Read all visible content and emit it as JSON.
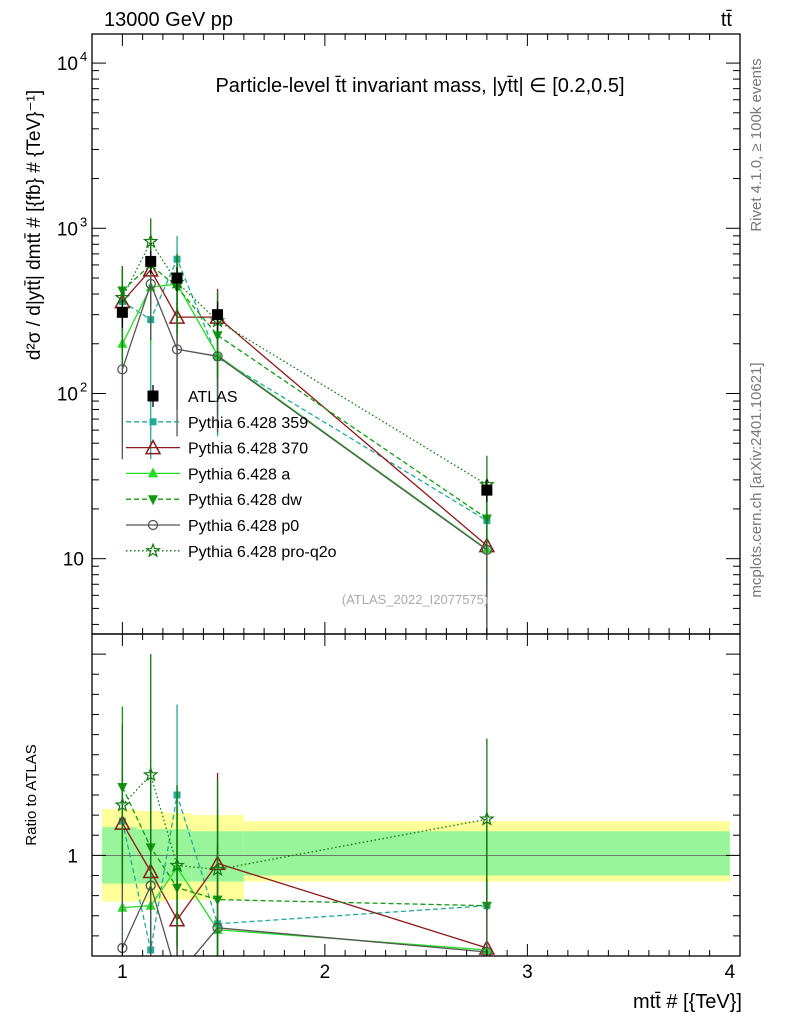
{
  "header": {
    "left_label": "13000 GeV pp",
    "right_label": "tt̄"
  },
  "side_labels": {
    "rivet": "Rivet 4.1.0, ≥ 100k events",
    "mcplots": "mcplots.cern.ch [arXiv:2401.10621]"
  },
  "chart_data": {
    "type": "scatter",
    "title": "Particle-level t̄t invariant mass, |yt̄t| ∈ [0.2,0.5]",
    "watermark": "(ATLAS_2022_I2077575)",
    "xlabel": "mtt̄ # [{TeV}]",
    "ylabel": "d²σ / d|ytt̄| dmtt̄ # [{fb} # {TeV}⁻¹]",
    "ratio_ylabel": "Ratio to ATLAS",
    "xlim": [
      0.85,
      4.05
    ],
    "ylim": [
      3.5,
      15000
    ],
    "ylog": true,
    "ratio_ylim": [
      0.5,
      2.1
    ],
    "x_ticks": [
      {
        "v": 1,
        "label": "1"
      },
      {
        "v": 2,
        "label": "2"
      },
      {
        "v": 3,
        "label": "3"
      },
      {
        "v": 4,
        "label": "4"
      }
    ],
    "y_ticks": [
      {
        "v": 10,
        "label": "10",
        "sup": ""
      },
      {
        "v": 100,
        "label": "10",
        "sup": "2"
      },
      {
        "v": 1000,
        "label": "10",
        "sup": "3"
      },
      {
        "v": 10000,
        "label": "10",
        "sup": "4"
      }
    ],
    "ratio_ticks": [
      {
        "v": 1,
        "label": "1"
      }
    ],
    "x": [
      1.0,
      1.14,
      1.27,
      1.47,
      2.8
    ],
    "bin_edges": [
      0.9,
      1.07,
      1.21,
      1.34,
      1.6,
      4.0
    ],
    "band_green": [
      [
        0.86,
        1.14
      ],
      [
        0.86,
        1.13
      ],
      [
        0.87,
        1.13
      ],
      [
        0.87,
        1.12
      ],
      [
        0.9,
        1.12
      ]
    ],
    "band_yellow": [
      [
        0.77,
        1.23
      ],
      [
        0.77,
        1.22
      ],
      [
        0.78,
        1.21
      ],
      [
        0.78,
        1.2
      ],
      [
        0.87,
        1.17
      ]
    ],
    "series": [
      {
        "name": "ATLAS",
        "legend": "ATLAS",
        "color": "#000000",
        "marker": "square",
        "dash": "none",
        "values": [
          310,
          630,
          500,
          300,
          26
        ],
        "err_lo": [
          60,
          100,
          80,
          60,
          4
        ],
        "err_hi": [
          60,
          100,
          80,
          60,
          4
        ],
        "ratio": [
          1,
          1,
          1,
          1,
          1
        ],
        "ratio_err": [
          0,
          0,
          0,
          0,
          0
        ]
      },
      {
        "name": "Pythia 6.428 359",
        "legend": "Pythia 6.428 359",
        "color": "#22aa99",
        "marker": "smallsquare",
        "dash": "5,3",
        "values": [
          360,
          280,
          650,
          165,
          17
        ],
        "err_lo": [
          200,
          240,
          380,
          110,
          10
        ],
        "err_hi": [
          230,
          260,
          250,
          160,
          12
        ],
        "ratio": [
          1.17,
          0.53,
          1.3,
          0.66,
          0.75
        ],
        "ratio_err": [
          0.3,
          0.4,
          0.45,
          0.4,
          0.4
        ]
      },
      {
        "name": "Pythia 6.428 370",
        "legend": "Pythia 6.428 370",
        "color": "#8b1a1a",
        "marker": "triangle-open",
        "dash": "none",
        "values": [
          360,
          560,
          290,
          290,
          12
        ],
        "err_lo": [
          200,
          250,
          210,
          180,
          11.9
        ],
        "err_hi": [
          230,
          260,
          220,
          140,
          8
        ],
        "ratio": [
          1.16,
          0.92,
          0.68,
          0.96,
          0.54
        ],
        "ratio_err": [
          0.3,
          0.4,
          0.4,
          0.45,
          0.35
        ]
      },
      {
        "name": "Pythia 6.428 a",
        "legend": "Pythia 6.428 a",
        "color": "#22dd22",
        "marker": "triangle",
        "dash": "none",
        "values": [
          200,
          440,
          460,
          170,
          11.4
        ],
        "err_lo": [
          150,
          240,
          250,
          110,
          11.3
        ],
        "err_hi": [
          230,
          260,
          230,
          130,
          8
        ],
        "ratio": [
          0.74,
          0.75,
          0.94,
          0.63,
          0.53
        ],
        "ratio_err": [
          0.6,
          0.4,
          0.4,
          0.4,
          0.35
        ]
      },
      {
        "name": "Pythia 6.428 dw",
        "legend": "Pythia 6.428 dw",
        "color": "#119911",
        "marker": "triangle-down",
        "dash": "5,3",
        "values": [
          420,
          600,
          440,
          225,
          17.5
        ],
        "err_lo": [
          170,
          250,
          230,
          150,
          10
        ],
        "err_hi": [
          150,
          260,
          240,
          130,
          12
        ],
        "ratio": [
          1.34,
          1.04,
          0.84,
          0.78,
          0.75
        ],
        "ratio_err": [
          0.4,
          0.4,
          0.4,
          0.45,
          0.4
        ]
      },
      {
        "name": "Pythia 6.428 p0",
        "legend": "Pythia 6.428 p0",
        "color": "#555555",
        "marker": "circle-open",
        "dash": "none",
        "values": [
          140,
          460,
          185,
          168,
          11.3
        ],
        "err_lo": [
          100,
          250,
          130,
          110,
          11.2
        ],
        "err_hi": [
          150,
          250,
          150,
          130,
          8
        ],
        "ratio": [
          0.54,
          0.85,
          0.4,
          0.64,
          0.52
        ],
        "ratio_err": [
          0.5,
          0.4,
          0.3,
          0.4,
          0.35
        ]
      },
      {
        "name": "Pythia 6.428 pro-q2o",
        "legend": "Pythia 6.428 pro-q2o",
        "color": "#117711",
        "marker": "star",
        "dash": "1.5,2.5",
        "values": [
          380,
          830,
          470,
          275,
          28
        ],
        "err_lo": [
          230,
          300,
          240,
          150,
          16
        ],
        "err_hi": [
          200,
          320,
          230,
          140,
          14
        ],
        "ratio": [
          1.25,
          1.4,
          0.95,
          0.93,
          1.18
        ],
        "ratio_err": [
          0.4,
          0.6,
          0.4,
          0.45,
          0.4
        ]
      }
    ]
  }
}
